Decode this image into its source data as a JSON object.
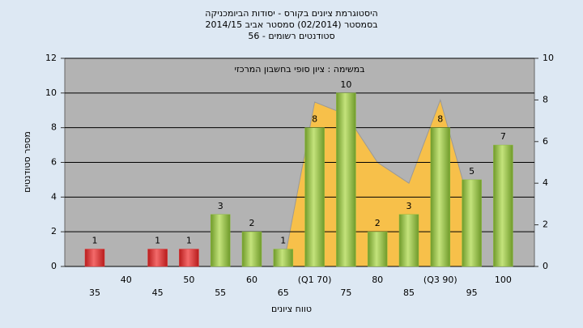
{
  "chart_data": {
    "type": "bar",
    "title": [
      "היסטוגרמת ציונים בקורס - יסודות הביומכניקה",
      "בסמסטר  (02/2014)  סמסטר אביב 2014/15",
      "סטודנטים רשומים - 56"
    ],
    "annotation": "במשימה : ציון סופי בחשבון המרכזי",
    "x_label": "טווח ציונים",
    "y_label": "מספר סטודנטים",
    "categories": [
      "35",
      "40",
      "45",
      "50",
      "55",
      "60",
      "65",
      "(Q1 70)",
      "75",
      "80",
      "85",
      "(Q3 90)",
      "95",
      "100"
    ],
    "series": [
      {
        "values": [
          1,
          null,
          1,
          1,
          3,
          2,
          1,
          8,
          10,
          2,
          3,
          8,
          5,
          7
        ],
        "colors": [
          "#e03030",
          "#e03030",
          "#e03030",
          "#e03030",
          "#8cbc3c",
          "#8cbc3c",
          "#8cbc3c",
          "#8cbc3c",
          "#8cbc3c",
          "#8cbc3c",
          "#8cbc3c",
          "#8cbc3c",
          "#8cbc3c",
          "#8cbc3c"
        ]
      },
      {
        "type": "area",
        "axis": "y2",
        "color": "#f7c04a",
        "values": [
          null,
          null,
          null,
          null,
          null,
          null,
          0,
          7.9,
          7.3,
          5,
          4,
          8,
          2.6,
          null
        ]
      }
    ],
    "ylim": [
      0,
      12
    ],
    "yticks": [
      0,
      2,
      4,
      6,
      8,
      10,
      12
    ],
    "y2lim": [
      0,
      10
    ],
    "y2ticks": [
      0,
      2,
      4,
      6,
      8,
      10
    ],
    "grid": true
  }
}
